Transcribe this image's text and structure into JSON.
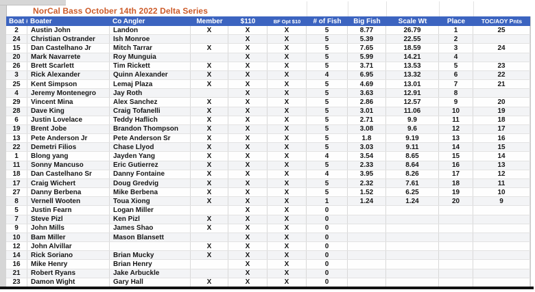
{
  "title": "NorCal Bass October 14th 2022 Delta Series",
  "colors": {
    "title_text": "#cc5a28",
    "header_bg": "#3c64c0",
    "header_text": "#ffffff",
    "grid_line": "#d8d8d8",
    "bottom_border": "#111111"
  },
  "table": {
    "columns": [
      {
        "key": "boat",
        "label": "Boat #"
      },
      {
        "key": "boater",
        "label": "Boater"
      },
      {
        "key": "co_angler",
        "label": "Co Angler"
      },
      {
        "key": "member",
        "label": "Member"
      },
      {
        "key": "entry_110",
        "label": "$110"
      },
      {
        "key": "bf_opt_10",
        "label": "BF Opt $10"
      },
      {
        "key": "num_fish",
        "label": "# of Fish"
      },
      {
        "key": "big_fish",
        "label": "Big Fish"
      },
      {
        "key": "scale_wt",
        "label": "Scale Wt"
      },
      {
        "key": "place",
        "label": "Place"
      },
      {
        "key": "toc_aoy_pnts",
        "label": "TOC/AOY Pnts"
      }
    ],
    "rows": [
      {
        "boat": "2",
        "boater": "Austin John",
        "co_angler": "Landon",
        "member": "X",
        "entry_110": "X",
        "bf_opt_10": "X",
        "num_fish": "5",
        "big_fish": "8.77",
        "scale_wt": "26.79",
        "place": "1",
        "toc_aoy_pnts": "25"
      },
      {
        "boat": "24",
        "boater": "Christian Ostrander",
        "co_angler": "Ish Monroe",
        "member": "",
        "entry_110": "X",
        "bf_opt_10": "X",
        "num_fish": "5",
        "big_fish": "5.39",
        "scale_wt": "22.55",
        "place": "2",
        "toc_aoy_pnts": ""
      },
      {
        "boat": "15",
        "boater": "Dan Castelhano Jr",
        "co_angler": "Mitch Tarrar",
        "member": "X",
        "entry_110": "X",
        "bf_opt_10": "X",
        "num_fish": "5",
        "big_fish": "7.65",
        "scale_wt": "18.59",
        "place": "3",
        "toc_aoy_pnts": "24"
      },
      {
        "boat": "20",
        "boater": "Mark Navarrete",
        "co_angler": "Roy Munguia",
        "member": "",
        "entry_110": "X",
        "bf_opt_10": "X",
        "num_fish": "5",
        "big_fish": "5.99",
        "scale_wt": "14.21",
        "place": "4",
        "toc_aoy_pnts": ""
      },
      {
        "boat": "26",
        "boater": "Brett Scarlett",
        "co_angler": "Tim Rickett",
        "member": "X",
        "entry_110": "X",
        "bf_opt_10": "X",
        "num_fish": "5",
        "big_fish": "3.71",
        "scale_wt": "13.53",
        "place": "5",
        "toc_aoy_pnts": "23"
      },
      {
        "boat": "3",
        "boater": "Rick Alexander",
        "co_angler": "Quinn Alexander",
        "member": "X",
        "entry_110": "X",
        "bf_opt_10": "X",
        "num_fish": "4",
        "big_fish": "6.95",
        "scale_wt": "13.32",
        "place": "6",
        "toc_aoy_pnts": "22"
      },
      {
        "boat": "25",
        "boater": "Kent Simpson",
        "co_angler": "Lemaj Plaza",
        "member": "X",
        "entry_110": "X",
        "bf_opt_10": "X",
        "num_fish": "5",
        "big_fish": "4.69",
        "scale_wt": "13.01",
        "place": "7",
        "toc_aoy_pnts": "21"
      },
      {
        "boat": "4",
        "boater": "Jeremy Montenegro",
        "co_angler": "Jay Roth",
        "member": "",
        "entry_110": "X",
        "bf_opt_10": "X",
        "num_fish": "5",
        "big_fish": "3.63",
        "scale_wt": "12.91",
        "place": "8",
        "toc_aoy_pnts": ""
      },
      {
        "boat": "29",
        "boater": "Vincent Mina",
        "co_angler": "Alex Sanchez",
        "member": "X",
        "entry_110": "X",
        "bf_opt_10": "X",
        "num_fish": "5",
        "big_fish": "2.86",
        "scale_wt": "12.57",
        "place": "9",
        "toc_aoy_pnts": "20"
      },
      {
        "boat": "28",
        "boater": "Dave King",
        "co_angler": "Craig Tofanelli",
        "member": "X",
        "entry_110": "X",
        "bf_opt_10": "X",
        "num_fish": "5",
        "big_fish": "3.01",
        "scale_wt": "11.06",
        "place": "10",
        "toc_aoy_pnts": "19"
      },
      {
        "boat": "6",
        "boater": "Justin Lovelace",
        "co_angler": "Teddy Haflich",
        "member": "X",
        "entry_110": "X",
        "bf_opt_10": "X",
        "num_fish": "5",
        "big_fish": "2.71",
        "scale_wt": "9.9",
        "place": "11",
        "toc_aoy_pnts": "18"
      },
      {
        "boat": "19",
        "boater": "Brent Jobe",
        "co_angler": "Brandon Thompson",
        "member": "X",
        "entry_110": "X",
        "bf_opt_10": "X",
        "num_fish": "5",
        "big_fish": "3.08",
        "scale_wt": "9.6",
        "place": "12",
        "toc_aoy_pnts": "17"
      },
      {
        "boat": "13",
        "boater": "Pete Anderson Jr",
        "co_angler": "Pete Anderson Sr",
        "member": "X",
        "entry_110": "X",
        "bf_opt_10": "X",
        "num_fish": "5",
        "big_fish": "1.8",
        "scale_wt": "9.19",
        "place": "13",
        "toc_aoy_pnts": "16"
      },
      {
        "boat": "22",
        "boater": "Demetri Filios",
        "co_angler": "Chase Llyod",
        "member": "X",
        "entry_110": "X",
        "bf_opt_10": "X",
        "num_fish": "5",
        "big_fish": "3.03",
        "scale_wt": "9.11",
        "place": "14",
        "toc_aoy_pnts": "15"
      },
      {
        "boat": "1",
        "boater": "Blong yang",
        "co_angler": "Jayden Yang",
        "member": "X",
        "entry_110": "X",
        "bf_opt_10": "X",
        "num_fish": "4",
        "big_fish": "3.54",
        "scale_wt": "8.65",
        "place": "15",
        "toc_aoy_pnts": "14"
      },
      {
        "boat": "11",
        "boater": "Sonny Mancuso",
        "co_angler": "Eric Gutierrez",
        "member": "X",
        "entry_110": "X",
        "bf_opt_10": "X",
        "num_fish": "5",
        "big_fish": "2.33",
        "scale_wt": "8.64",
        "place": "16",
        "toc_aoy_pnts": "13"
      },
      {
        "boat": "18",
        "boater": "Dan Castelhano Sr",
        "co_angler": "Danny Fontaine",
        "member": "X",
        "entry_110": "X",
        "bf_opt_10": "X",
        "num_fish": "4",
        "big_fish": "3.95",
        "scale_wt": "8.26",
        "place": "17",
        "toc_aoy_pnts": "12"
      },
      {
        "boat": "17",
        "boater": "Craig Wichert",
        "co_angler": "Doug Gredvig",
        "member": "X",
        "entry_110": "X",
        "bf_opt_10": "X",
        "num_fish": "5",
        "big_fish": "2.32",
        "scale_wt": "7.61",
        "place": "18",
        "toc_aoy_pnts": "11"
      },
      {
        "boat": "27",
        "boater": "Danny Berbena",
        "co_angler": "Mike Berbena",
        "member": "X",
        "entry_110": "X",
        "bf_opt_10": "X",
        "num_fish": "5",
        "big_fish": "1.52",
        "scale_wt": "6.25",
        "place": "19",
        "toc_aoy_pnts": "10"
      },
      {
        "boat": "8",
        "boater": "Vernell Wooten",
        "co_angler": "Toua Xiong",
        "member": "X",
        "entry_110": "X",
        "bf_opt_10": "X",
        "num_fish": "1",
        "big_fish": "1.24",
        "scale_wt": "1.24",
        "place": "20",
        "toc_aoy_pnts": "9"
      },
      {
        "boat": "5",
        "boater": "Justin Fearn",
        "co_angler": "Logan Miller",
        "member": "",
        "entry_110": "X",
        "bf_opt_10": "X",
        "num_fish": "0",
        "big_fish": "",
        "scale_wt": "",
        "place": "",
        "toc_aoy_pnts": ""
      },
      {
        "boat": "7",
        "boater": "Steve Pizl",
        "co_angler": "Ken Pizl",
        "member": "X",
        "entry_110": "X",
        "bf_opt_10": "X",
        "num_fish": "0",
        "big_fish": "",
        "scale_wt": "",
        "place": "",
        "toc_aoy_pnts": ""
      },
      {
        "boat": "9",
        "boater": "John Mills",
        "co_angler": "James Shao",
        "member": "X",
        "entry_110": "X",
        "bf_opt_10": "X",
        "num_fish": "0",
        "big_fish": "",
        "scale_wt": "",
        "place": "",
        "toc_aoy_pnts": ""
      },
      {
        "boat": "10",
        "boater": "Bam Miller",
        "co_angler": "Mason Blansett",
        "member": "",
        "entry_110": "X",
        "bf_opt_10": "X",
        "num_fish": "0",
        "big_fish": "",
        "scale_wt": "",
        "place": "",
        "toc_aoy_pnts": ""
      },
      {
        "boat": "12",
        "boater": "John Alvillar",
        "co_angler": "",
        "member": "X",
        "entry_110": "X",
        "bf_opt_10": "X",
        "num_fish": "0",
        "big_fish": "",
        "scale_wt": "",
        "place": "",
        "toc_aoy_pnts": ""
      },
      {
        "boat": "14",
        "boater": "Rick Soriano",
        "co_angler": "Brian Mucky",
        "member": "X",
        "entry_110": "X",
        "bf_opt_10": "X",
        "num_fish": "0",
        "big_fish": "",
        "scale_wt": "",
        "place": "",
        "toc_aoy_pnts": ""
      },
      {
        "boat": "16",
        "boater": "Mike Henry",
        "co_angler": "Brian Henry",
        "member": "",
        "entry_110": "X",
        "bf_opt_10": "X",
        "num_fish": "0",
        "big_fish": "",
        "scale_wt": "",
        "place": "",
        "toc_aoy_pnts": ""
      },
      {
        "boat": "21",
        "boater": "Robert Ryans",
        "co_angler": "Jake Arbuckle",
        "member": "",
        "entry_110": "X",
        "bf_opt_10": "X",
        "num_fish": "0",
        "big_fish": "",
        "scale_wt": "",
        "place": "",
        "toc_aoy_pnts": ""
      },
      {
        "boat": "23",
        "boater": "Damon Wight",
        "co_angler": "Gary Hall",
        "member": "X",
        "entry_110": "X",
        "bf_opt_10": "X",
        "num_fish": "0",
        "big_fish": "",
        "scale_wt": "",
        "place": "",
        "toc_aoy_pnts": ""
      }
    ]
  }
}
